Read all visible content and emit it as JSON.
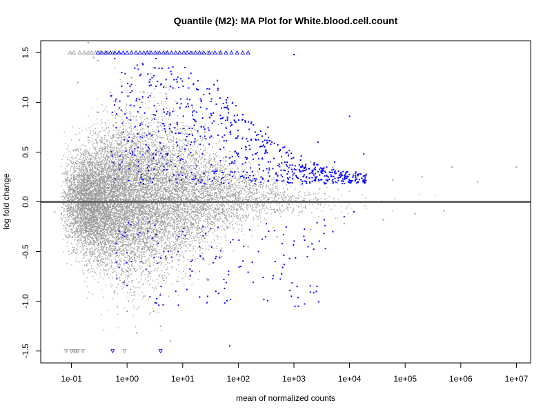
{
  "chart_data": {
    "type": "scatter",
    "title": "Quantile (M2): MA Plot for White.blood.cell.count",
    "xlabel": "mean of normalized counts",
    "ylabel": "log fold change",
    "x_scale": "log10",
    "x_ticks": [
      {
        "value": 0.1,
        "label": "1e-01"
      },
      {
        "value": 1,
        "label": "1e+00"
      },
      {
        "value": 10,
        "label": "1e+01"
      },
      {
        "value": 100,
        "label": "1e+02"
      },
      {
        "value": 1000,
        "label": "1e+03"
      },
      {
        "value": 10000,
        "label": "1e+04"
      },
      {
        "value": 100000,
        "label": "1e+05"
      },
      {
        "value": 1000000,
        "label": "1e+06"
      },
      {
        "value": 10000000,
        "label": "1e+07"
      }
    ],
    "y_ticks": [
      {
        "value": -1.5,
        "label": "-1.5"
      },
      {
        "value": -1.0,
        "label": "-1.0"
      },
      {
        "value": -0.5,
        "label": "-0.5"
      },
      {
        "value": 0.0,
        "label": "0.0"
      },
      {
        "value": 0.5,
        "label": "0.5"
      },
      {
        "value": 1.0,
        "label": "1.0"
      },
      {
        "value": 1.5,
        "label": "1.5"
      }
    ],
    "xlim": [
      0.028,
      18000000
    ],
    "ylim": [
      -1.62,
      1.62
    ],
    "reference_line_y": 0,
    "grid": false,
    "legend": "none",
    "colors": {
      "nonsignificant": "#999999",
      "significant": "#0000ff",
      "reference_line": "#666666",
      "frame": "#000000"
    },
    "series": [
      {
        "label": "gray",
        "color": "#999999",
        "points": [
          [
            0.12,
            0.52
          ],
          [
            0.2,
            0.65
          ],
          [
            0.3,
            0.9
          ],
          [
            0.5,
            1.1
          ],
          [
            0.8,
            1.3
          ],
          [
            1.2,
            1.25
          ],
          [
            2,
            1.1
          ],
          [
            3,
            1.35
          ],
          [
            5,
            1.15
          ],
          [
            8,
            1.0
          ],
          [
            15,
            0.95
          ],
          [
            30,
            0.85
          ],
          [
            60,
            0.75
          ],
          [
            120,
            0.65
          ],
          [
            300,
            0.55
          ],
          [
            800,
            0.48
          ],
          [
            2000,
            0.4
          ],
          [
            5000,
            0.35
          ],
          [
            20000,
            0.28
          ],
          [
            60000,
            0.22
          ],
          [
            200000,
            0.25
          ],
          [
            700000,
            0.35
          ],
          [
            2000000,
            0.2
          ],
          [
            10000000,
            0.35
          ],
          [
            0.15,
            -0.3
          ],
          [
            0.3,
            -0.6
          ],
          [
            0.6,
            -0.9
          ],
          [
            1,
            -1.1
          ],
          [
            2,
            -0.95
          ],
          [
            4,
            -1.25
          ],
          [
            8,
            -0.8
          ],
          [
            20,
            -0.7
          ],
          [
            50,
            -0.55
          ],
          [
            150,
            -0.45
          ],
          [
            500,
            -0.35
          ],
          [
            2000,
            -0.28
          ],
          [
            8000,
            -0.22
          ],
          [
            40000,
            -0.18
          ],
          [
            150000,
            -0.12
          ],
          [
            500000,
            -0.09
          ],
          [
            0.08,
            0.05
          ],
          [
            0.05,
            -0.1
          ],
          [
            0.2,
            1.6
          ],
          [
            0.13,
            1.2
          ],
          [
            0.25,
            1.45
          ],
          [
            0.3,
            1.42
          ],
          [
            0.6,
            1.5
          ],
          [
            1.5,
            -1.32
          ],
          [
            3,
            -1.1
          ],
          [
            6,
            -1.4
          ]
        ]
      },
      {
        "label": "blue",
        "color": "#0000ff",
        "points": [
          [
            0.6,
            1.44
          ],
          [
            0.8,
            1.3
          ],
          [
            1.2,
            1.18
          ],
          [
            1.7,
            1.27
          ],
          [
            2.4,
            1.05
          ],
          [
            3.3,
            1.44
          ],
          [
            4.5,
            0.93
          ],
          [
            6,
            1.16
          ],
          [
            8,
            0.78
          ],
          [
            11,
            1.35
          ],
          [
            15,
            0.67
          ],
          [
            21,
            0.95
          ],
          [
            30,
            0.58
          ],
          [
            42,
            1.22
          ],
          [
            60,
            0.45
          ],
          [
            85,
            0.82
          ],
          [
            120,
            0.38
          ],
          [
            170,
            0.62
          ],
          [
            240,
            0.33
          ],
          [
            340,
            0.75
          ],
          [
            480,
            0.29
          ],
          [
            680,
            0.55
          ],
          [
            960,
            0.27
          ],
          [
            1350,
            0.46
          ],
          [
            1900,
            0.24
          ],
          [
            2700,
            0.6
          ],
          [
            3800,
            0.22
          ],
          [
            5400,
            0.4
          ],
          [
            7600,
            0.23
          ],
          [
            10000,
            0.86
          ],
          [
            13000,
            0.3
          ],
          [
            18000,
            0.48
          ],
          [
            1000,
            1.48
          ],
          [
            2.4,
            0.55
          ],
          [
            5,
            0.48
          ],
          [
            9,
            0.42
          ],
          [
            18,
            0.36
          ],
          [
            35,
            0.31
          ],
          [
            70,
            0.27
          ],
          [
            140,
            0.24
          ],
          [
            0.9,
            -0.35
          ],
          [
            1.8,
            -0.6
          ],
          [
            2.5,
            -0.2
          ],
          [
            3.6,
            -0.42
          ],
          [
            4.1,
            -0.85
          ],
          [
            5.5,
            -0.5
          ],
          [
            7.5,
            -0.9
          ],
          [
            10,
            -0.3
          ],
          [
            14,
            -0.6
          ],
          [
            20,
            -0.45
          ],
          [
            28,
            -0.95
          ],
          [
            40,
            -0.55
          ],
          [
            55,
            -0.78
          ],
          [
            80,
            -0.38
          ],
          [
            110,
            -0.65
          ],
          [
            160,
            -0.28
          ],
          [
            230,
            -0.5
          ],
          [
            320,
            -0.22
          ],
          [
            460,
            -0.6
          ],
          [
            650,
            -0.33
          ],
          [
            900,
            -0.95
          ],
          [
            1200,
            -1.05
          ],
          [
            1800,
            -0.45
          ],
          [
            2600,
            -0.85
          ],
          [
            3500,
            -0.18
          ],
          [
            5000,
            -0.3
          ],
          [
            8000,
            -0.15
          ],
          [
            12000,
            -0.1
          ],
          [
            70,
            -1.45
          ]
        ]
      }
    ],
    "capped_markers": [
      {
        "label": "gray_up",
        "y": 1.5,
        "direction": "up",
        "color": "#999999",
        "x": [
          0.095,
          0.11,
          0.14,
          0.17,
          0.2,
          0.23,
          0.27,
          0.33,
          0.4,
          0.45,
          0.55,
          0.7,
          2.5,
          3.5,
          5,
          15,
          22,
          28,
          34,
          45
        ]
      },
      {
        "label": "blue_up",
        "y": 1.5,
        "direction": "up",
        "color": "#0000ff",
        "x": [
          0.3,
          0.35,
          0.42,
          0.5,
          0.6,
          0.72,
          0.85,
          1.0,
          1.2,
          1.45,
          1.7,
          2.0,
          2.3,
          2.7,
          3.2,
          3.8,
          4.5,
          5.3,
          6.3,
          7.5,
          8.8,
          10.5,
          12,
          14,
          17,
          20,
          24,
          30,
          38,
          48,
          60,
          75,
          95,
          120,
          150
        ]
      },
      {
        "label": "gray_down",
        "y": -1.5,
        "direction": "down",
        "color": "#999999",
        "x": [
          0.08,
          0.1,
          0.11,
          0.12,
          0.13,
          0.16,
          0.9
        ]
      },
      {
        "label": "blue_down",
        "y": -1.5,
        "direction": "down",
        "color": "#0000ff",
        "x": [
          0.55,
          4.0
        ]
      }
    ]
  }
}
